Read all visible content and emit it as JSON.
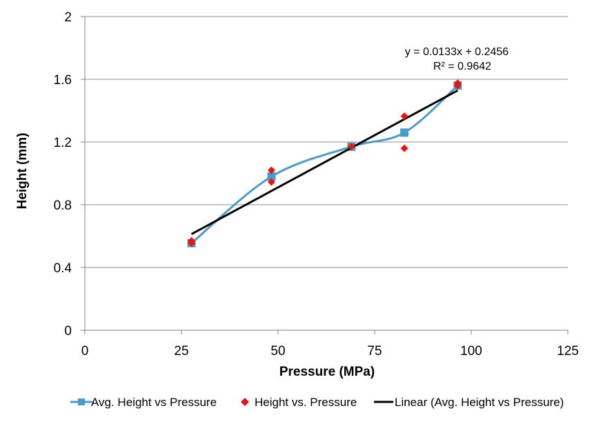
{
  "chart_data": {
    "type": "scatter",
    "title": "",
    "xlabel": "Pressure (MPa)",
    "ylabel": "Height (mm)",
    "xlim": [
      0,
      125
    ],
    "ylim": [
      0,
      2
    ],
    "x_ticks": [
      "0",
      "25",
      "50",
      "75",
      "100",
      "125"
    ],
    "y_ticks": [
      "0",
      "0.4",
      "0.8",
      "1.2",
      "1.6",
      "2"
    ],
    "grid": "horizontal",
    "legend_position": "bottom",
    "series": [
      {
        "name": "Avg. Height vs Pressure",
        "style": "smooth-line-with-square-markers",
        "color": "#4A9ACB",
        "x": [
          27.6,
          48.3,
          69.0,
          82.7,
          96.5
        ],
        "y": [
          0.555,
          0.98,
          1.17,
          1.26,
          1.56
        ]
      },
      {
        "name": "Height vs. Pressure",
        "style": "diamond-markers",
        "color": "#E8140E",
        "x": [
          27.6,
          27.6,
          48.3,
          48.3,
          69.0,
          82.7,
          82.7,
          96.5,
          96.5
        ],
        "y": [
          0.555,
          0.57,
          1.02,
          0.945,
          1.17,
          1.365,
          1.16,
          1.575,
          1.56
        ]
      },
      {
        "name": "Linear (Avg. Height vs Pressure)",
        "style": "trendline",
        "color": "#000000",
        "x": [
          27.6,
          96.5
        ],
        "slope": 0.0133,
        "intercept": 0.2456
      }
    ],
    "annotations": {
      "equation": "y = 0.0133x + 0.2456",
      "r_squared": "R² = 0.9642"
    }
  }
}
